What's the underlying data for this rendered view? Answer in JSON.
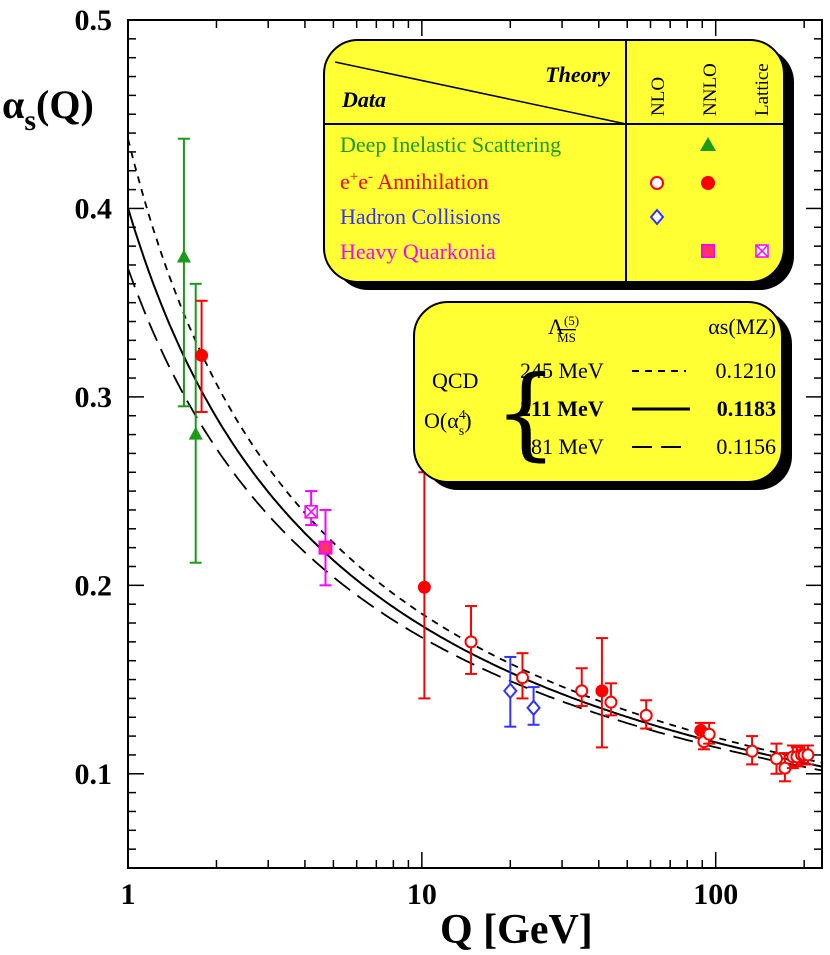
{
  "chart_data": {
    "type": "scatter",
    "x_scale": "log",
    "xlim": [
      1,
      230
    ],
    "ylim": [
      0.05,
      0.5
    ],
    "x_ticks": [
      1,
      10,
      100
    ],
    "x_tick_labels": [
      "1",
      "10",
      "100"
    ],
    "y_ticks": [
      0.1,
      0.2,
      0.3,
      0.4,
      0.5
    ],
    "y_tick_labels": [
      "0.1",
      "0.2",
      "0.3",
      "0.4",
      "0.5"
    ],
    "xlabel": "Q [GeV]",
    "ylabel_main": "α",
    "ylabel_sub": "s",
    "ylabel_tail": "(Q)",
    "colors": {
      "dis": "#1a9b1a",
      "ee": "#ff0000",
      "hadron": "#3333ff",
      "quarkonia": "#ff00ff",
      "box": "#ffff33"
    },
    "legend": {
      "theory_label": "Theory",
      "data_label": "Data",
      "columns": [
        "NLO",
        "NNLO",
        "Lattice"
      ],
      "rows": [
        {
          "label": "Deep Inelastic Scattering",
          "key": "dis"
        },
        {
          "label": "e⁺e⁻ Annihilation",
          "key": "ee"
        },
        {
          "label": "Hadron Collisions",
          "key": "hadron"
        },
        {
          "label": "Heavy Quarkonia",
          "key": "quarkonia"
        }
      ]
    },
    "qcd_box": {
      "lambda_header": "Λ",
      "lambda_sup": "(5)",
      "lambda_sub": "MS",
      "alpha_header": "αs(MZ)",
      "qcd_label": "QCD",
      "order_label": "O(α",
      "order_sup": "4",
      "order_sub": "s",
      "order_tail": ")",
      "entries": [
        {
          "lambda": "245 MeV",
          "alpha": "0.1210",
          "style": "short-dashed",
          "bold": false
        },
        {
          "lambda": "211 MeV",
          "alpha": "0.1183",
          "style": "solid",
          "bold": true
        },
        {
          "lambda": "181 MeV",
          "alpha": "0.1156",
          "style": "long-dashed",
          "bold": false
        }
      ]
    },
    "curves": [
      {
        "lambda_mev": 245,
        "alpha_mz": 0.121,
        "style": "short-dashed"
      },
      {
        "lambda_mev": 211,
        "alpha_mz": 0.1183,
        "style": "solid"
      },
      {
        "lambda_mev": 181,
        "alpha_mz": 0.1156,
        "style": "long-dashed"
      }
    ],
    "points": [
      {
        "x": 1.55,
        "y": 0.374,
        "err_low": 0.079,
        "err_high": 0.063,
        "group": "dis",
        "marker": "triangle-filled"
      },
      {
        "x": 1.7,
        "y": 0.28,
        "err_low": 0.068,
        "err_high": 0.08,
        "group": "dis",
        "marker": "triangle-filled"
      },
      {
        "x": 1.78,
        "y": 0.322,
        "err_low": 0.03,
        "err_high": 0.029,
        "group": "ee",
        "marker": "circle-filled"
      },
      {
        "x": 4.2,
        "y": 0.239,
        "err_low": 0.007,
        "err_high": 0.011,
        "group": "quarkonia",
        "marker": "square-crossed"
      },
      {
        "x": 4.7,
        "y": 0.22,
        "err_low": 0.02,
        "err_high": 0.02,
        "group": "quarkonia",
        "marker": "square-filled"
      },
      {
        "x": 10.2,
        "y": 0.199,
        "err_low": 0.059,
        "err_high": 0.061,
        "group": "ee",
        "marker": "circle-filled"
      },
      {
        "x": 14.7,
        "y": 0.17,
        "err_low": 0.017,
        "err_high": 0.019,
        "group": "ee",
        "marker": "circle-open"
      },
      {
        "x": 20.0,
        "y": 0.144,
        "err_low": 0.019,
        "err_high": 0.018,
        "group": "hadron",
        "marker": "diamond-open"
      },
      {
        "x": 22.0,
        "y": 0.151,
        "err_low": 0.011,
        "err_high": 0.013,
        "group": "ee",
        "marker": "circle-open"
      },
      {
        "x": 24.0,
        "y": 0.135,
        "err_low": 0.009,
        "err_high": 0.011,
        "group": "hadron",
        "marker": "diamond-open"
      },
      {
        "x": 35.0,
        "y": 0.144,
        "err_low": 0.008,
        "err_high": 0.012,
        "group": "ee",
        "marker": "circle-open"
      },
      {
        "x": 41.0,
        "y": 0.144,
        "err_low": 0.03,
        "err_high": 0.028,
        "group": "ee",
        "marker": "circle-filled"
      },
      {
        "x": 44.0,
        "y": 0.138,
        "err_low": 0.007,
        "err_high": 0.01,
        "group": "ee",
        "marker": "circle-open"
      },
      {
        "x": 58.0,
        "y": 0.131,
        "err_low": 0.007,
        "err_high": 0.008,
        "group": "ee",
        "marker": "circle-open"
      },
      {
        "x": 89.0,
        "y": 0.123,
        "err_low": 0.004,
        "err_high": 0.004,
        "group": "ee",
        "marker": "circle-filled"
      },
      {
        "x": 91.2,
        "y": 0.117,
        "err_low": 0.004,
        "err_high": 0.004,
        "group": "ee",
        "marker": "circle-open"
      },
      {
        "x": 95.0,
        "y": 0.121,
        "err_low": 0.005,
        "err_high": 0.006,
        "group": "ee",
        "marker": "circle-open"
      },
      {
        "x": 133.0,
        "y": 0.112,
        "err_low": 0.007,
        "err_high": 0.008,
        "group": "ee",
        "marker": "circle-open"
      },
      {
        "x": 161.0,
        "y": 0.108,
        "err_low": 0.008,
        "err_high": 0.008,
        "group": "ee",
        "marker": "circle-open"
      },
      {
        "x": 172.0,
        "y": 0.103,
        "err_low": 0.007,
        "err_high": 0.008,
        "group": "ee",
        "marker": "circle-open"
      },
      {
        "x": 183.0,
        "y": 0.109,
        "err_low": 0.006,
        "err_high": 0.006,
        "group": "ee",
        "marker": "circle-open"
      },
      {
        "x": 189.0,
        "y": 0.109,
        "err_low": 0.005,
        "err_high": 0.005,
        "group": "ee",
        "marker": "circle-open"
      },
      {
        "x": 196.0,
        "y": 0.11,
        "err_low": 0.005,
        "err_high": 0.005,
        "group": "ee",
        "marker": "circle-open"
      },
      {
        "x": 200.0,
        "y": 0.11,
        "err_low": 0.005,
        "err_high": 0.005,
        "group": "ee",
        "marker": "circle-open"
      },
      {
        "x": 206.0,
        "y": 0.11,
        "err_low": 0.005,
        "err_high": 0.005,
        "group": "ee",
        "marker": "circle-open"
      }
    ]
  }
}
